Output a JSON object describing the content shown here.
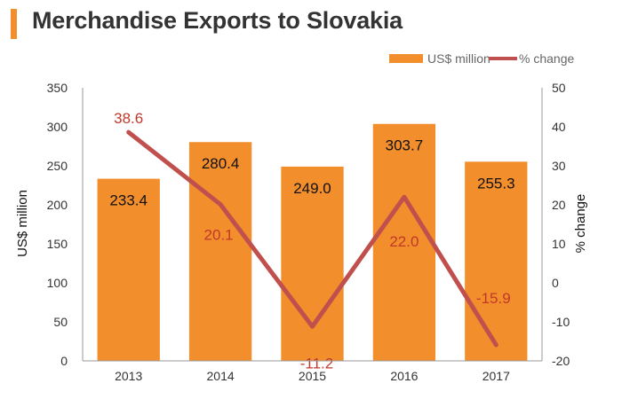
{
  "title": "Merchandise Exports to Slovakia",
  "chart_data": {
    "type": "bar",
    "categories": [
      "2013",
      "2014",
      "2015",
      "2016",
      "2017"
    ],
    "series": [
      {
        "name": "US$ million",
        "type": "bar",
        "axis": "left",
        "color": "#f28e2b",
        "values": [
          233.4,
          280.4,
          249.0,
          303.7,
          255.3
        ],
        "labels": [
          "233.4",
          "280.4",
          "249.0",
          "303.7",
          "255.3"
        ]
      },
      {
        "name": "% change",
        "type": "line",
        "axis": "right",
        "color": "#c0504d",
        "values": [
          38.6,
          20.1,
          -11.2,
          22.0,
          -15.9
        ],
        "labels": [
          "38.6",
          "20.1",
          "-11.2",
          "22.0",
          "-15.9"
        ]
      }
    ],
    "ylabel": "US$ million",
    "y2label": "% change",
    "ylim": [
      0,
      350
    ],
    "y2lim": [
      -20,
      50
    ],
    "yticks": [
      "0",
      "50",
      "100",
      "150",
      "200",
      "250",
      "300",
      "350"
    ],
    "y2ticks": [
      "-20",
      "-10",
      "0",
      "10",
      "20",
      "30",
      "40",
      "50"
    ],
    "grid": false,
    "legend": "top-right"
  }
}
